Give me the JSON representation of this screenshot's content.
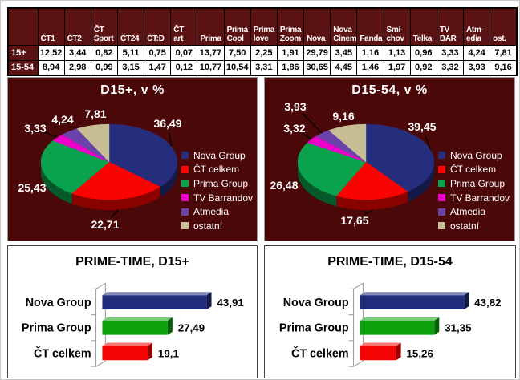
{
  "table": {
    "corner_label": "",
    "columns": [
      "ČT1",
      "ČT2",
      "ČT\nSport",
      "ČT24",
      "ČT:D",
      "ČT\nart",
      "Prima",
      "Prima\nCool",
      "Prima\nlove",
      "Prima\nZoom",
      "Nova",
      "Nova\nCinema",
      "Fanda",
      "Smí-\nchov",
      "Telka",
      "TV\nBAR",
      "Atm-\nedia",
      "ost."
    ],
    "rows": [
      {
        "label": "15+",
        "values": [
          "12,52",
          "3,44",
          "0,82",
          "5,11",
          "0,75",
          "0,07",
          "13,77",
          "7,50",
          "2,25",
          "1,91",
          "29,79",
          "3,45",
          "1,16",
          "1,13",
          "0,96",
          "3,33",
          "4,24",
          "7,81"
        ]
      },
      {
        "label": "15-54",
        "values": [
          "8,94",
          "2,98",
          "0,99",
          "3,15",
          "1,47",
          "0,12",
          "10,77",
          "10,54",
          "3,31",
          "1,86",
          "30,65",
          "4,45",
          "1,46",
          "1,97",
          "0,92",
          "3,32",
          "3,93",
          "9,16"
        ]
      }
    ]
  },
  "colors": {
    "table_header_bg": "#5a1212",
    "pie_panel_bg": "#4b0808",
    "nova_group": "#252e7d",
    "ct_celkem": "#f90400",
    "prima_group": "#0ba24d",
    "tv_barrandov": "#ee00cb",
    "atmedia": "#6b42a9",
    "ostatni": "#c8be95"
  },
  "chart_data": [
    {
      "type": "pie",
      "title": "D15+, v %",
      "labels": [
        "Nova Group",
        "ČT celkem",
        "Prima Group",
        "TV Barrandov",
        "Atmedia",
        "ostatní"
      ],
      "values": [
        36.49,
        22.71,
        25.43,
        3.33,
        4.24,
        7.81
      ],
      "display_values": [
        "36,49",
        "22,71",
        "25,43",
        "3,33",
        "4,24",
        "7,81"
      ],
      "colors": [
        "#252e7d",
        "#f90400",
        "#0ba24d",
        "#ee00cb",
        "#6b42a9",
        "#c8be95"
      ],
      "legend_position": "right",
      "background": "#4b0808",
      "effect": "3d"
    },
    {
      "type": "pie",
      "title": "D15-54, v %",
      "labels": [
        "Nova Group",
        "ČT celkem",
        "Prima Group",
        "TV Barrandov",
        "Atmedia",
        "ostatní"
      ],
      "values": [
        39.45,
        17.65,
        26.48,
        3.32,
        3.93,
        9.16
      ],
      "display_values": [
        "39,45",
        "17,65",
        "26,48",
        "3,32",
        "3,93",
        "9,16"
      ],
      "colors": [
        "#252e7d",
        "#f90400",
        "#0ba24d",
        "#ee00cb",
        "#6b42a9",
        "#c8be95"
      ],
      "legend_position": "right",
      "background": "#4b0808",
      "effect": "3d"
    },
    {
      "type": "bar",
      "title": "PRIME-TIME, D15+",
      "orientation": "horizontal",
      "categories": [
        "Nova Group",
        "Prima Group",
        "ČT celkem"
      ],
      "values": [
        43.91,
        27.49,
        19.1
      ],
      "display_values": [
        "43,91",
        "27,49",
        "19,1"
      ],
      "colors": [
        "#1f2c7c",
        "#0ca00c",
        "#f60303"
      ],
      "xlim": [
        0,
        50
      ],
      "grid": false,
      "effect": "3d"
    },
    {
      "type": "bar",
      "title": "PRIME-TIME, D15-54",
      "orientation": "horizontal",
      "categories": [
        "Nova Group",
        "Prima Group",
        "ČT celkem"
      ],
      "values": [
        43.82,
        31.35,
        15.26
      ],
      "display_values": [
        "43,82",
        "31,35",
        "15,26"
      ],
      "colors": [
        "#1f2c7c",
        "#0ca00c",
        "#f60303"
      ],
      "xlim": [
        0,
        50
      ],
      "grid": false,
      "effect": "3d"
    }
  ]
}
